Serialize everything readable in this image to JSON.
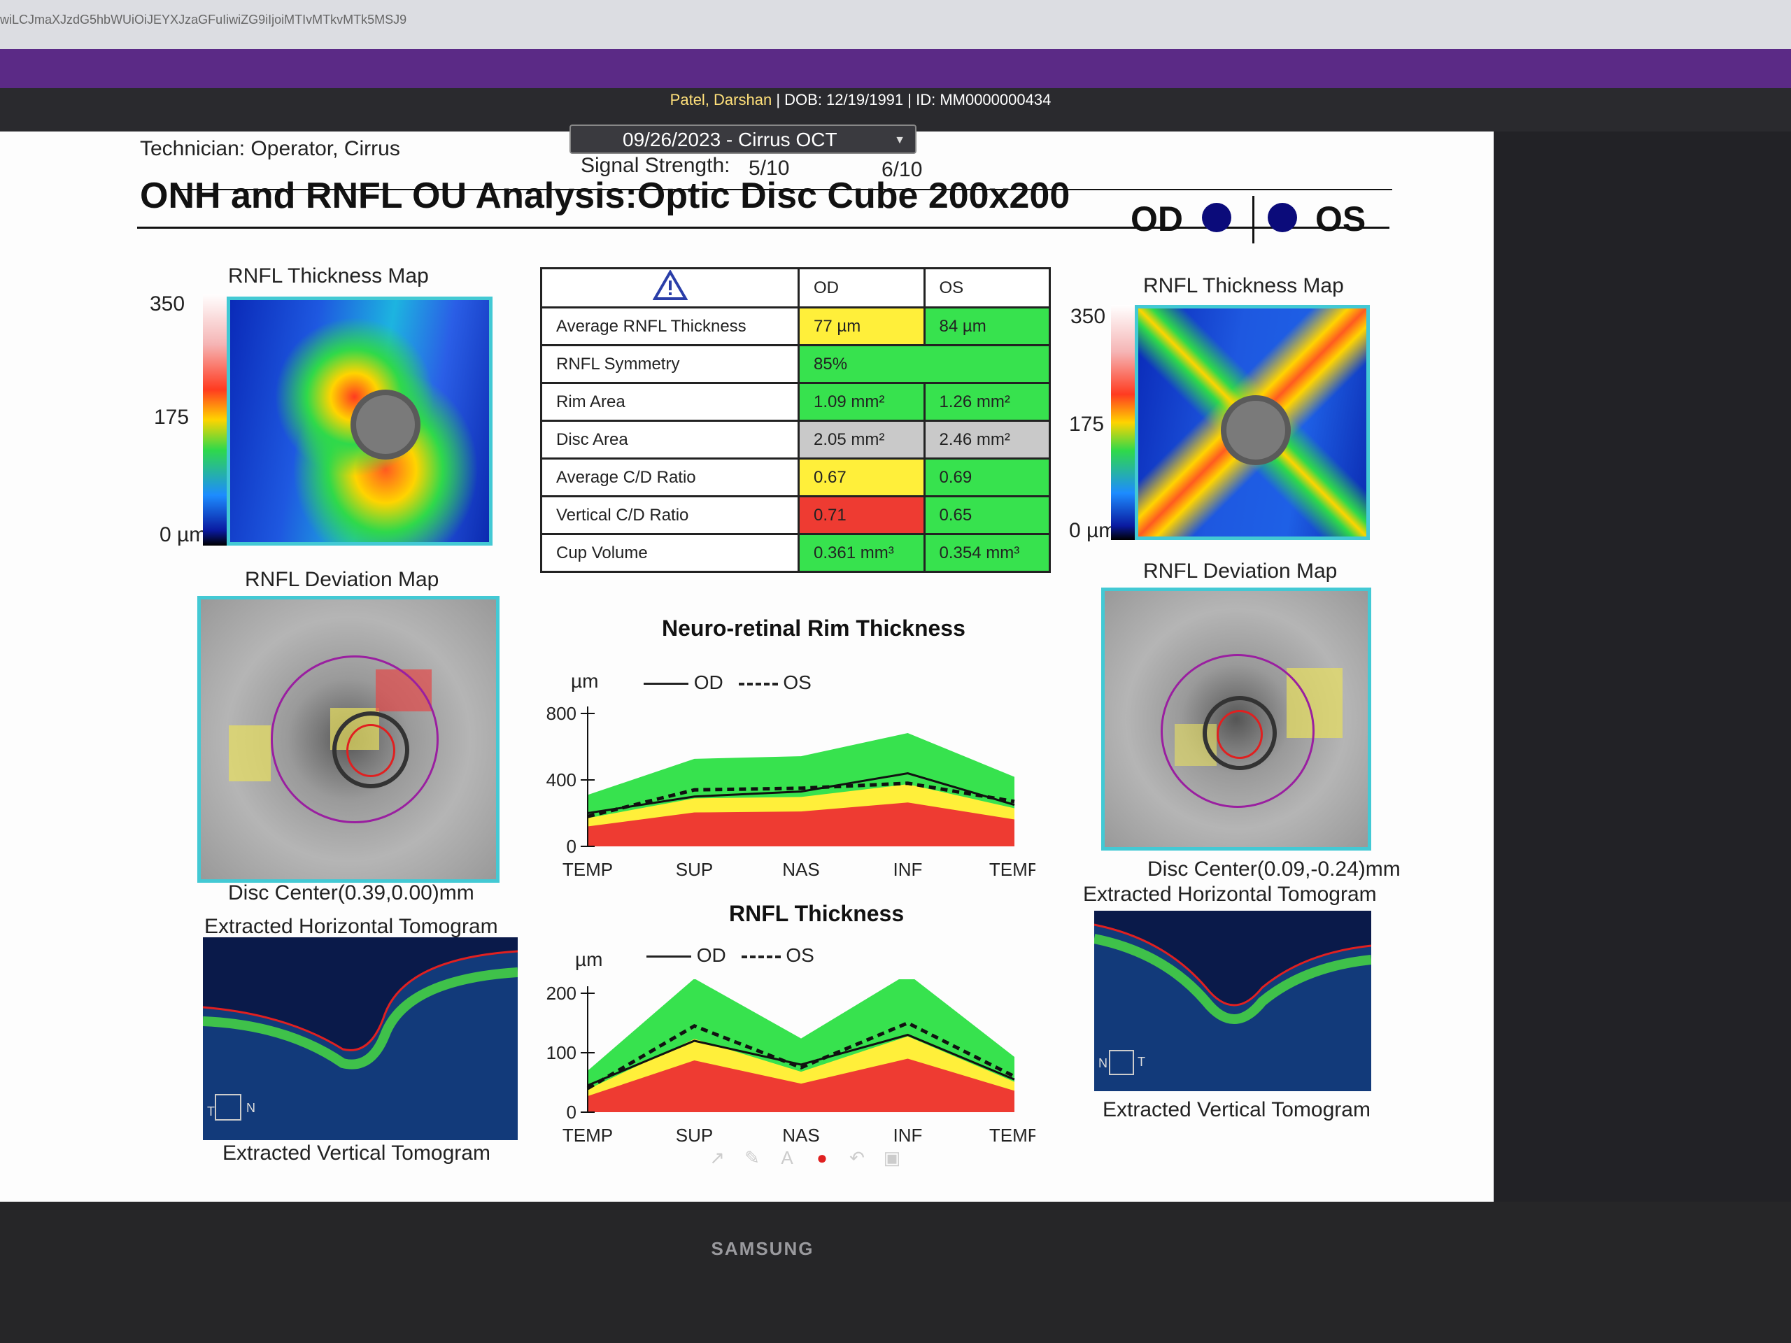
{
  "browser": {
    "url_fragment": "wiLCJmaXJzdG5hbWUiOiJEYXJzaGFuIiwiZG9iIjoiMTIvMTkvMTk5MSJ9"
  },
  "patient": {
    "name": "Patel, Darshan",
    "rest": " | DOB: 12/19/1991 | ID: MM0000000434"
  },
  "visit": {
    "selected": "09/26/2023 - Cirrus OCT"
  },
  "report": {
    "technician": "Technician:   Operator, Cirrus",
    "signal_label": "Signal Strength:",
    "signal_od": "5/10",
    "signal_os": "6/10",
    "title": "ONH and RNFL OU Analysis:Optic Disc Cube 200x200",
    "od": "OD",
    "os": "OS"
  },
  "left": {
    "thickness_title": "RNFL Thickness Map",
    "scale_top": "350",
    "scale_mid": "175",
    "scale_bot": "0 µm",
    "deviation_title": "RNFL Deviation Map",
    "disc_center": "Disc Center(0.39,0.00)mm",
    "horiz_title": "Extracted Horizontal Tomogram",
    "vert_title": "Extracted Vertical Tomogram",
    "tomo_left": "T",
    "tomo_right": "N"
  },
  "right": {
    "thickness_title": "RNFL Thickness Map",
    "scale_top": "350",
    "scale_mid": "175",
    "scale_bot": "0 µm",
    "deviation_title": "RNFL Deviation Map",
    "disc_center": "Disc Center(0.09,-0.24)mm",
    "horiz_title": "Extracted Horizontal Tomogram",
    "vert_title": "Extracted Vertical Tomogram",
    "tomo_left": "N",
    "tomo_right": "T"
  },
  "table": {
    "col_od": "OD",
    "col_os": "OS",
    "rows": [
      {
        "name": "Average RNFL Thickness",
        "od": "77 µm",
        "os": "84 µm"
      },
      {
        "name": "RNFL Symmetry",
        "both": "85%"
      },
      {
        "name": "Rim Area",
        "od": "1.09 mm²",
        "os": "1.26 mm²"
      },
      {
        "name": "Disc Area",
        "od": "2.05 mm²",
        "os": "2.46 mm²"
      },
      {
        "name": "Average C/D Ratio",
        "od": "0.67",
        "os": "0.69"
      },
      {
        "name": "Vertical C/D Ratio",
        "od": "0.71",
        "os": "0.65"
      },
      {
        "name": "Cup Volume",
        "od": "0.361 mm³",
        "os": "0.354 mm³"
      }
    ]
  },
  "colors": {
    "normal": "#37e24e",
    "borderline": "#ffef3a",
    "outside": "#ee3b32",
    "na": "#c9c9c9",
    "purple": "#5b2a86",
    "accent_border": "#43c9d4"
  },
  "chart_data": [
    {
      "type": "area",
      "title": "Neuro-retinal Rim Thickness",
      "ylabel": "µm",
      "ylim": [
        0,
        800
      ],
      "yticks": [
        "800",
        "400",
        "0"
      ],
      "categories": [
        "TEMP",
        "SUP",
        "NAS",
        "INF",
        "TEMP"
      ],
      "legend": {
        "od": "OD",
        "os": "OS"
      },
      "series": [
        {
          "name": "OD",
          "values": [
            200,
            300,
            330,
            440,
            250
          ]
        },
        {
          "name": "OS",
          "values": [
            180,
            340,
            350,
            380,
            270
          ]
        }
      ]
    },
    {
      "type": "area",
      "title": "RNFL Thickness",
      "ylabel": "µm",
      "ylim": [
        0,
        200
      ],
      "yticks": [
        "200",
        "100",
        "0"
      ],
      "categories": [
        "TEMP",
        "SUP",
        "NAS",
        "INF",
        "TEMP"
      ],
      "legend": {
        "od": "OD",
        "os": "OS"
      },
      "series": [
        {
          "name": "OD",
          "values": [
            45,
            120,
            80,
            130,
            55
          ]
        },
        {
          "name": "OS",
          "values": [
            40,
            145,
            75,
            150,
            60
          ]
        }
      ]
    }
  ],
  "toolbar": {
    "icons": [
      "arrow-icon",
      "pen-icon",
      "text-icon",
      "record-icon",
      "undo-icon",
      "save-icon"
    ]
  },
  "monitor": {
    "brand": "SAMSUNG"
  }
}
